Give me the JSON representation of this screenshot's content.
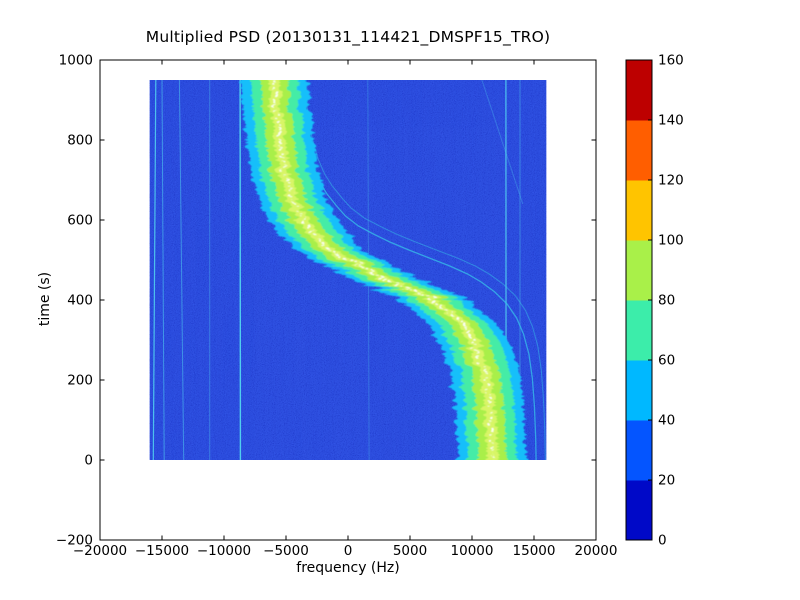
{
  "chart_data": {
    "type": "heatmap",
    "title": "Multiplied PSD (20130131_114421_DMSPF15_TRO)",
    "xlabel": "frequency (Hz)",
    "ylabel": "time (s)",
    "xlim": [
      -20000,
      20000
    ],
    "ylim": [
      -200,
      1000
    ],
    "x_ticks": {
      "values": [
        -20000,
        -15000,
        -10000,
        -5000,
        0,
        5000,
        10000,
        15000,
        20000
      ],
      "labels": [
        "−20000",
        "−15000",
        "−10000",
        "−5000",
        "0",
        "5000",
        "10000",
        "15000",
        "20000"
      ]
    },
    "y_ticks": {
      "values": [
        -200,
        0,
        200,
        400,
        600,
        800,
        1000
      ],
      "labels": [
        "−200",
        "0",
        "200",
        "400",
        "600",
        "800",
        "1000"
      ]
    },
    "image_extent": {
      "f_min": -16000,
      "f_max": 16000,
      "t_min": 0,
      "t_max": 950
    },
    "colors": {
      "figure_background": "#ffffff",
      "axes_stroke": "#000000",
      "image_base": "#2e51e4",
      "speckle_dark": "#1d33c4",
      "speckle_navy": "#0a0e8e",
      "speckle_light": "#6b86f2",
      "streak": "#4868ee",
      "rfi": "#53d6f0",
      "ghost": "#38c9e9",
      "center_line": "#ffffff"
    },
    "doppler_curve": {
      "description": "S-shaped Doppler trace of satellite pass, frequency (Hz) vs time (s)",
      "points": [
        [
          1050,
          -6300
        ],
        [
          950,
          -6200
        ],
        [
          870,
          -5950
        ],
        [
          790,
          -5650
        ],
        [
          730,
          -5350
        ],
        [
          680,
          -4950
        ],
        [
          640,
          -4450
        ],
        [
          610,
          -3900
        ],
        [
          580,
          -3200
        ],
        [
          555,
          -2550
        ],
        [
          530,
          -1600
        ],
        [
          510,
          -500
        ],
        [
          490,
          700
        ],
        [
          470,
          2100
        ],
        [
          450,
          3600
        ],
        [
          430,
          5100
        ],
        [
          410,
          6400
        ],
        [
          390,
          7400
        ],
        [
          365,
          8400
        ],
        [
          335,
          9300
        ],
        [
          300,
          10000
        ],
        [
          260,
          10500
        ],
        [
          210,
          10900
        ],
        [
          150,
          11150
        ],
        [
          80,
          11300
        ],
        [
          0,
          11400
        ],
        [
          -100,
          11450
        ]
      ]
    },
    "band_layers": [
      {
        "level": "40-60",
        "color": "#15bffa",
        "half_width_hz": 2750
      },
      {
        "level": "60-80",
        "color": "#45eca6",
        "half_width_hz": 1950
      },
      {
        "level": "80-100",
        "color": "#a9ef4a",
        "half_width_hz": 1100
      },
      {
        "level": "100-120",
        "color": "#d8f566",
        "half_width_hz": 430
      }
    ],
    "center_line": {
      "color": "#ffffff",
      "style": "dashed",
      "width": 2
    },
    "ghost_curves": [
      {
        "f_scale": 1.1,
        "f_offset_hz": 2600,
        "t_offset_s": 55,
        "opacity": 0.7,
        "width": 1.3
      },
      {
        "f_scale": 1.12,
        "f_offset_hz": 3100,
        "t_offset_s": 75,
        "opacity": 0.45,
        "width": 1.1
      }
    ],
    "rfi_lines": [
      {
        "f1": -15500,
        "t1": 950,
        "f2": -15700,
        "t2": 0,
        "w": 1.2,
        "o": 0.85
      },
      {
        "f1": -15000,
        "t1": 950,
        "f2": -14820,
        "t2": 0,
        "w": 1.0,
        "o": 0.55
      },
      {
        "f1": -13600,
        "t1": 950,
        "f2": -13250,
        "t2": 0,
        "w": 1.0,
        "o": 0.5
      },
      {
        "f1": -11150,
        "t1": 950,
        "f2": -11150,
        "t2": 0,
        "w": 1.0,
        "o": 0.35
      },
      {
        "f1": -8700,
        "t1": 950,
        "f2": -8680,
        "t2": 0,
        "w": 1.4,
        "o": 0.95
      },
      {
        "f1": 1600,
        "t1": 950,
        "f2": 1700,
        "t2": 0,
        "w": 1.0,
        "o": 0.28
      },
      {
        "f1": 12730,
        "t1": 950,
        "f2": 12750,
        "t2": 0,
        "w": 1.3,
        "o": 0.8
      },
      {
        "f1": 13870,
        "t1": 950,
        "f2": 13870,
        "t2": 0,
        "w": 1.0,
        "o": 0.4
      },
      {
        "f1": 10800,
        "t1": 950,
        "f2": 14100,
        "t2": 640,
        "w": 1.0,
        "o": 0.3
      }
    ],
    "colorbar": {
      "range": [
        0,
        160
      ],
      "tick_values": [
        0,
        20,
        40,
        60,
        80,
        100,
        120,
        140,
        160
      ],
      "tick_labels": [
        "0",
        "20",
        "40",
        "60",
        "80",
        "100",
        "120",
        "140",
        "160"
      ],
      "band_colors_bottom_to_top": [
        "#0009c8",
        "#0455ff",
        "#00b8ff",
        "#3cedaa",
        "#a9f049",
        "#ffc400",
        "#ff5e00",
        "#bd0000"
      ]
    }
  }
}
